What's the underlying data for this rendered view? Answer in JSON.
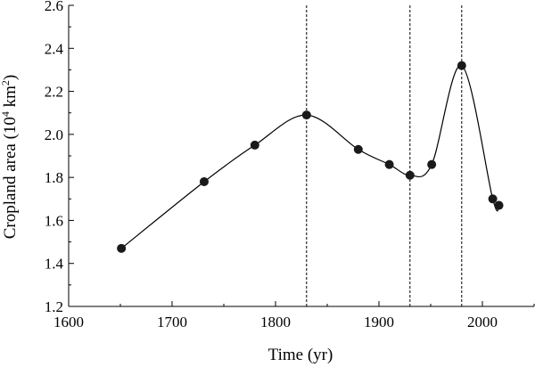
{
  "chart_data": {
    "type": "line",
    "title": "",
    "xlabel": "Time (yr)",
    "ylabel_main": "Cropland area (10",
    "ylabel_sup": "4",
    "ylabel_tail": " km",
    "ylabel_sup2": "2",
    "ylabel_close": ")",
    "xlim": [
      1600,
      2050
    ],
    "ylim": [
      1.2,
      2.6
    ],
    "xticks": [
      1600,
      1700,
      1800,
      1900,
      2000
    ],
    "xtick_labels": [
      "1600",
      "1700",
      "1800",
      "1900",
      "2000"
    ],
    "yticks": [
      1.2,
      1.4,
      1.6,
      1.8,
      2.0,
      2.2,
      2.4,
      2.6
    ],
    "ytick_labels": [
      "1.2",
      "1.4",
      "1.6",
      "1.8",
      "2.0",
      "2.2",
      "2.4",
      "2.6"
    ],
    "x": [
      1651,
      1731,
      1780,
      1830,
      1880,
      1910,
      1930,
      1951,
      1980,
      2010,
      2016
    ],
    "y": [
      1.47,
      1.78,
      1.95,
      2.09,
      1.93,
      1.86,
      1.81,
      1.86,
      2.32,
      1.7,
      1.67
    ],
    "vlines": [
      1830,
      1930,
      1980
    ],
    "grid": false,
    "colors": {
      "line": "#000000",
      "marker": "#1a1a1a",
      "axis": "#000000"
    }
  }
}
